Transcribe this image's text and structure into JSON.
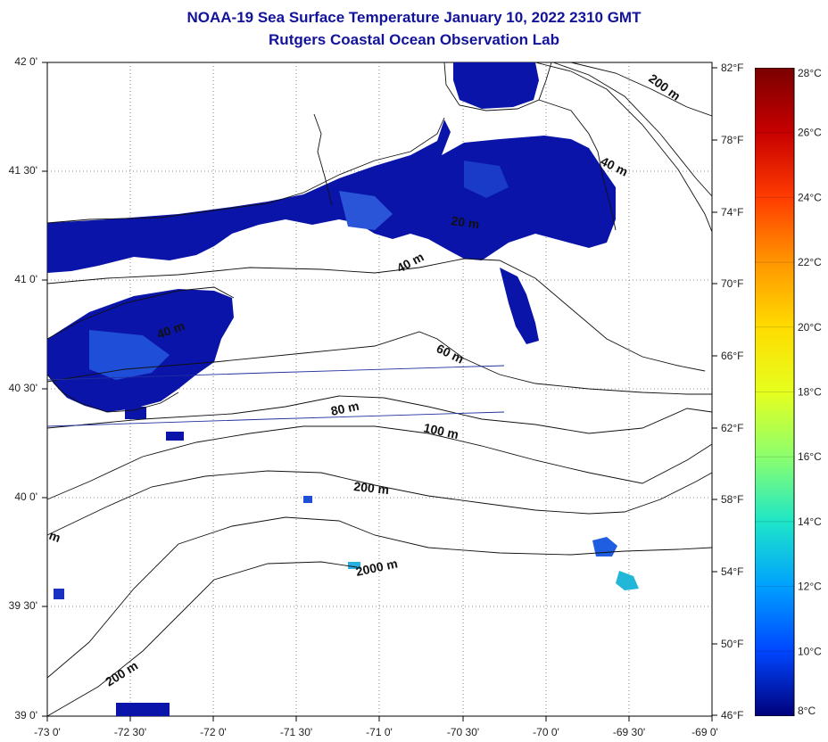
{
  "title": {
    "line1": "NOAA-19 Sea Surface Temperature January 10, 2022 2310 GMT",
    "line2": "Rutgers Coastal Ocean Observation Lab"
  },
  "axes": {
    "lat_labels": [
      "42 0'",
      "41 30'",
      "41 0'",
      "40 30'",
      "40 0'",
      "39 30'",
      "39 0'"
    ],
    "lon_labels": [
      "-73 0'",
      "-72 30'",
      "-72 0'",
      "-71 30'",
      "-71 0'",
      "-70 30'",
      "-70 0'",
      "-69 30'",
      "-69 0'"
    ],
    "fahrenheit_labels": [
      "82°F",
      "78°F",
      "74°F",
      "70°F",
      "66°F",
      "62°F",
      "58°F",
      "54°F",
      "50°F",
      "46°F"
    ]
  },
  "colorbar": {
    "celsius_labels": [
      "28°C",
      "26°C",
      "24°C",
      "22°C",
      "20°C",
      "18°C",
      "16°C",
      "14°C",
      "12°C",
      "10°C",
      "8°C"
    ],
    "colors": [
      "#7a0000",
      "#c80000",
      "#ff3c00",
      "#ff9600",
      "#ffdc00",
      "#e6ff1e",
      "#8cff6e",
      "#1ee6c8",
      "#00a0ff",
      "#0046ff",
      "#00007a"
    ]
  },
  "contour_labels": [
    "200 m",
    "40 m",
    "20 m",
    "40 m",
    "40 m",
    "60 m",
    "80 m",
    "100 m",
    "200 m",
    "2000 m",
    "200 m",
    "m"
  ],
  "map": {
    "ocean_color": "#ffffff",
    "sst_cold_color": "#0a14a8",
    "sst_mid_color": "#1f4fd8",
    "contour_color": "#111111"
  }
}
